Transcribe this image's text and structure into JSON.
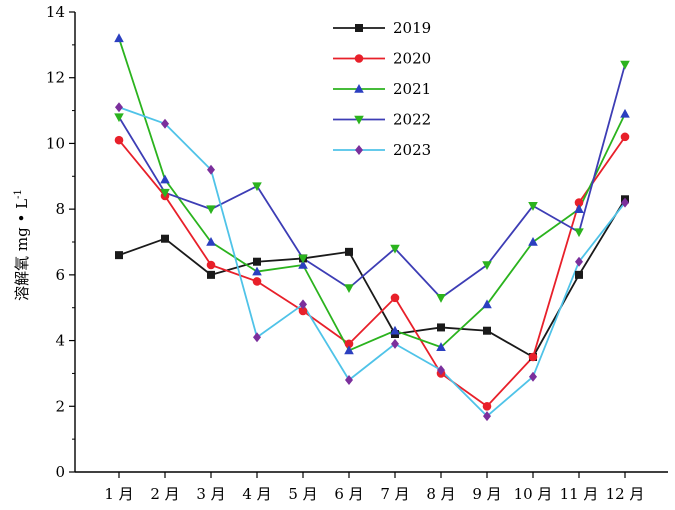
{
  "chart_data": {
    "type": "line",
    "ylabel": "溶解氧 mg • L",
    "ylabel_superscript": "-1",
    "categories": [
      "1 月",
      "2 月",
      "3 月",
      "4 月",
      "5 月",
      "6 月",
      "7 月",
      "8 月",
      "9 月",
      "10 月",
      "11 月",
      "12 月"
    ],
    "ylim": [
      0,
      14
    ],
    "yticks": [
      "0",
      "2",
      "4",
      "6",
      "8",
      "10",
      "12",
      "14"
    ],
    "legend_position": "top-center",
    "series": [
      {
        "name": "2019",
        "color": "#1a1a1a",
        "marker": "square",
        "values": [
          6.6,
          7.1,
          6.0,
          6.4,
          6.5,
          6.7,
          4.2,
          4.4,
          4.3,
          3.5,
          6.0,
          8.3
        ]
      },
      {
        "name": "2020",
        "color": "#e8202a",
        "marker": "circle",
        "values": [
          10.1,
          8.4,
          6.3,
          5.8,
          4.9,
          3.9,
          5.3,
          3.0,
          2.0,
          3.5,
          8.2,
          10.2
        ]
      },
      {
        "name": "2021",
        "color": "#2bb31e",
        "marker": "triangle-up",
        "values": [
          13.2,
          8.9,
          7.0,
          6.1,
          6.3,
          3.7,
          4.3,
          3.8,
          5.1,
          7.0,
          8.0,
          10.9
        ]
      },
      {
        "name": "2022",
        "color": "#3d3db5",
        "marker": "triangle-down",
        "values": [
          10.8,
          8.5,
          8.0,
          8.7,
          6.5,
          5.6,
          6.8,
          5.3,
          6.3,
          8.1,
          7.3,
          12.4
        ]
      },
      {
        "name": "2023",
        "color": "#4fc3e8",
        "marker": "diamond",
        "values": [
          11.1,
          10.6,
          9.2,
          4.1,
          5.1,
          2.8,
          3.9,
          3.1,
          1.7,
          2.9,
          6.4,
          8.2
        ]
      }
    ]
  },
  "series_style": {
    "2019": {
      "line": "#1a1a1a",
      "marker": "#1a1a1a"
    },
    "2020": {
      "line": "#e8202a",
      "marker": "#e8202a"
    },
    "2021": {
      "line": "#2bb31e",
      "marker": "#2b3fc0"
    },
    "2022": {
      "line": "#3d3db5",
      "marker": "#2bb31e"
    },
    "2023": {
      "line": "#4fc3e8",
      "marker": "#7b2f9c"
    }
  }
}
